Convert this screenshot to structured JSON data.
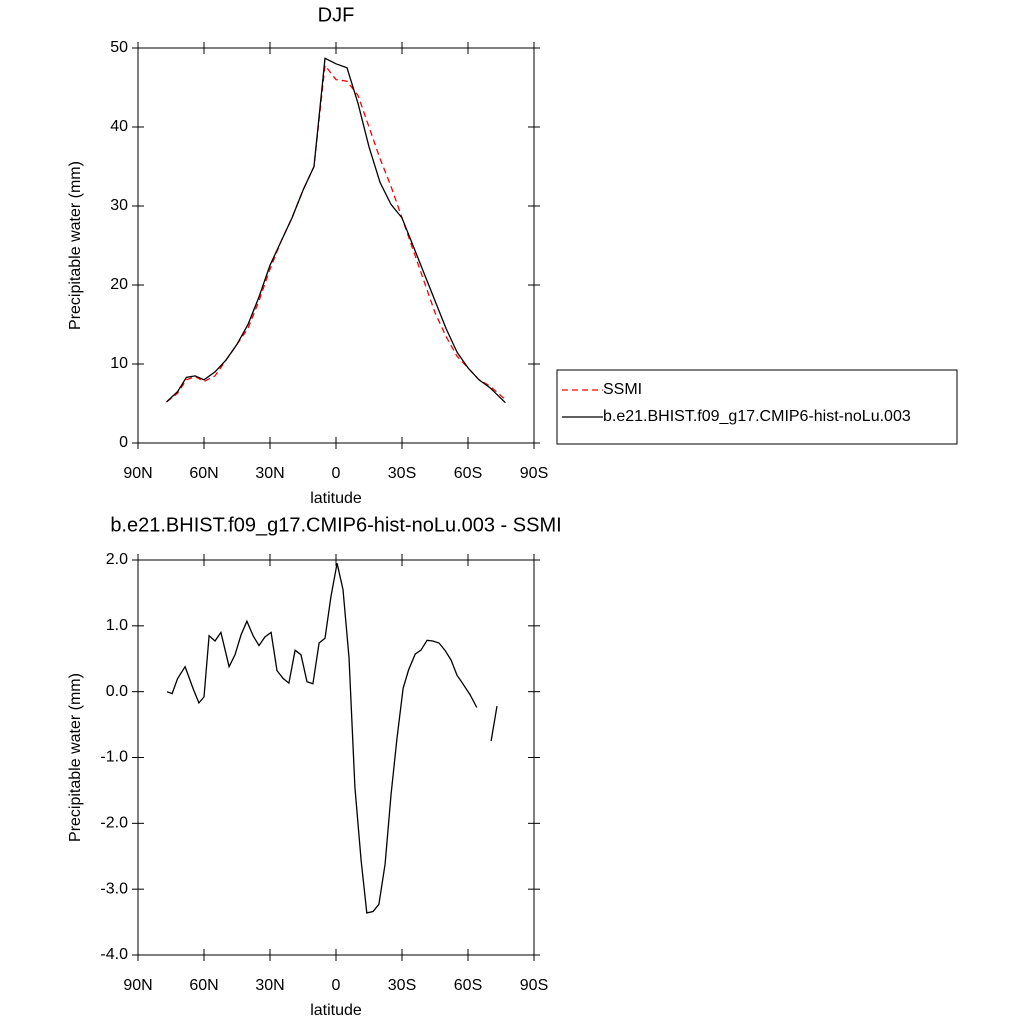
{
  "chart_data": [
    {
      "type": "line",
      "title": "DJF",
      "xlabel": "latitude",
      "ylabel": "Precipitable water (mm)",
      "xlim": [
        90,
        -90
      ],
      "xticks": [
        {
          "value": 90,
          "label": "90N"
        },
        {
          "value": 60,
          "label": "60N"
        },
        {
          "value": 30,
          "label": "30N"
        },
        0,
        {
          "value": -30,
          "label": "30S"
        },
        {
          "value": -60,
          "label": "60S"
        },
        {
          "value": -90,
          "label": "90S"
        }
      ],
      "ylim": [
        0,
        50
      ],
      "yticks": [
        0,
        10,
        20,
        30,
        40,
        50
      ],
      "legend": "right",
      "x": [
        77,
        72,
        68,
        64,
        60,
        55,
        50,
        45,
        40,
        35,
        30,
        25,
        20,
        15,
        10,
        5,
        0,
        -5,
        -10,
        -15,
        -20,
        -25,
        -30,
        -35,
        -40,
        -45,
        -50,
        -55,
        -60,
        -65,
        -70,
        -77
      ],
      "series": [
        {
          "name": "SSMI",
          "color": "#ff0000",
          "dashed": true,
          "values": [
            5.2,
            6.3,
            8.0,
            8.4,
            7.8,
            8.5,
            10.5,
            12.5,
            14.5,
            18,
            22,
            25.5,
            28.5,
            32,
            35,
            47.8,
            46,
            45.8,
            44,
            40,
            36,
            32.5,
            28.5,
            24.5,
            20.5,
            16.5,
            13.5,
            11,
            9.5,
            8,
            7.2,
            5.5
          ]
        },
        {
          "name": "b.e21.BHIST.f09_g17.CMIP6-hist-noLu.003",
          "color": "#000000",
          "dashed": false,
          "values": [
            5.2,
            6.5,
            8.3,
            8.5,
            8.0,
            9.0,
            10.5,
            12.5,
            15.0,
            18.5,
            22.5,
            25.5,
            28.5,
            32,
            35,
            48.7,
            48,
            47.5,
            43,
            37.5,
            33,
            30.2,
            28.5,
            25,
            21.5,
            18,
            14.5,
            11.5,
            9.5,
            8,
            7,
            5.1
          ]
        }
      ]
    },
    {
      "type": "line",
      "title": "b.e21.BHIST.f09_g17.CMIP6-hist-noLu.003 - SSMI",
      "xlabel": "latitude",
      "ylabel": "Precipitable water (mm)",
      "xlim": [
        90,
        -90
      ],
      "xticks": [
        {
          "value": 90,
          "label": "90N"
        },
        {
          "value": 60,
          "label": "60N"
        },
        {
          "value": 30,
          "label": "30N"
        },
        0,
        {
          "value": -30,
          "label": "30S"
        },
        {
          "value": -60,
          "label": "60S"
        },
        {
          "value": -90,
          "label": "90S"
        }
      ],
      "ylim": [
        -4,
        2
      ],
      "yticks": [
        {
          "value": -4,
          "label": "-4.0"
        },
        {
          "value": -3,
          "label": "-3.0"
        },
        {
          "value": -2,
          "label": "-2.0"
        },
        {
          "value": -1,
          "label": "-1.0"
        },
        {
          "value": 0,
          "label": "0.0"
        },
        {
          "value": 1,
          "label": "1.0"
        },
        {
          "value": 2,
          "label": "2.0"
        }
      ],
      "x": [
        76.8,
        74.5,
        72,
        68.6,
        65,
        62.3,
        60,
        57.7,
        55,
        52.3,
        48.6,
        45.9,
        43.2,
        40.5,
        37.7,
        35,
        32.3,
        29.5,
        26.8,
        24,
        21.4,
        18.6,
        15.9,
        13.2,
        10.5,
        7.7,
        5,
        2.3,
        -0.5,
        -3.2,
        -5.9,
        -8.6,
        -11.4,
        -14,
        -16.8,
        -19.5,
        -22.3,
        -25,
        -27.7,
        -30.5,
        -33,
        -36,
        -38.6,
        -41.4,
        -44,
        -46.8,
        -49.5,
        -52.3,
        -55,
        -57.7,
        -61,
        -64,
        -67,
        -70.5,
        -73.2
      ],
      "series": [
        {
          "name": null,
          "color": "#000000",
          "dashed": false,
          "values": [
            0,
            -0.03,
            0.2,
            0.38,
            0.05,
            -0.17,
            -0.08,
            0.85,
            0.77,
            0.9,
            0.38,
            0.56,
            0.86,
            1.07,
            0.85,
            0.7,
            0.83,
            0.9,
            0.32,
            0.2,
            0.13,
            0.63,
            0.56,
            0.15,
            0.12,
            0.74,
            0.81,
            1.44,
            1.95,
            1.55,
            0.52,
            -1.45,
            -2.56,
            -3.36,
            -3.34,
            -3.23,
            -2.62,
            -1.57,
            -0.72,
            0.05,
            0.33,
            0.57,
            0.63,
            0.78,
            0.77,
            0.74,
            0.63,
            0.48,
            0.25,
            0.12,
            -0.05,
            -0.24,
            null,
            -0.75,
            -0.22
          ]
        }
      ]
    }
  ]
}
